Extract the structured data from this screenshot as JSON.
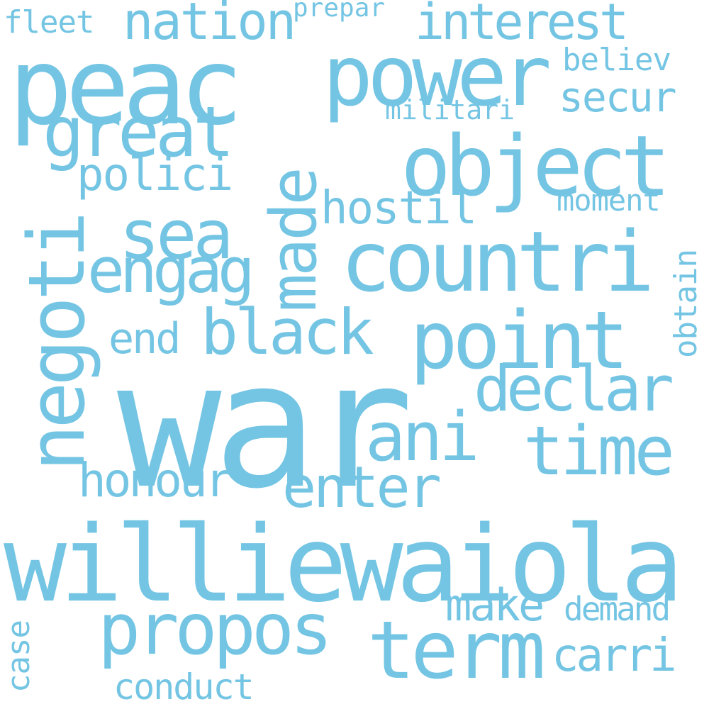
{
  "word_color": "#74c5e3",
  "background": "#ffffff",
  "words": [
    {
      "id": "war",
      "text": "war"
    },
    {
      "id": "williewaiola",
      "text": "williewaiola"
    },
    {
      "id": "peac",
      "text": "peac"
    },
    {
      "id": "power",
      "text": "power"
    },
    {
      "id": "countri",
      "text": "countri"
    },
    {
      "id": "object",
      "text": "object"
    },
    {
      "id": "point",
      "text": "point"
    },
    {
      "id": "negoti",
      "text": "negoti"
    },
    {
      "id": "term",
      "text": "term"
    },
    {
      "id": "propos",
      "text": "propos"
    },
    {
      "id": "great",
      "text": "great"
    },
    {
      "id": "made",
      "text": "made"
    },
    {
      "id": "black",
      "text": "black"
    },
    {
      "id": "ani",
      "text": "ani"
    },
    {
      "id": "time",
      "text": "time"
    },
    {
      "id": "sea",
      "text": "sea"
    },
    {
      "id": "engag",
      "text": "engag"
    },
    {
      "id": "declar",
      "text": "declar"
    },
    {
      "id": "enter",
      "text": "enter"
    },
    {
      "id": "nation",
      "text": "nation"
    },
    {
      "id": "interest",
      "text": "interest"
    },
    {
      "id": "honour",
      "text": "honour"
    },
    {
      "id": "make",
      "text": "make"
    },
    {
      "id": "polici",
      "text": "polici"
    },
    {
      "id": "hostil",
      "text": "hostil"
    },
    {
      "id": "carri",
      "text": "carri"
    },
    {
      "id": "secur",
      "text": "secur"
    },
    {
      "id": "end",
      "text": "end"
    },
    {
      "id": "conduct",
      "text": "conduct"
    },
    {
      "id": "demand",
      "text": "demand"
    },
    {
      "id": "fleet",
      "text": "fleet"
    },
    {
      "id": "believ",
      "text": "believ"
    },
    {
      "id": "moment",
      "text": "moment"
    },
    {
      "id": "militari",
      "text": "militari"
    },
    {
      "id": "prepar",
      "text": "prepar"
    },
    {
      "id": "obtain",
      "text": "obtain"
    },
    {
      "id": "case",
      "text": "case"
    }
  ]
}
